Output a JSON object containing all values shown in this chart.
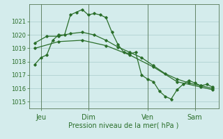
{
  "background_color": "#d4ecec",
  "grid_color": "#a8cccc",
  "line_color": "#2a6e2a",
  "marker_color": "#2a6e2a",
  "xlabel": "Pression niveau de la mer( hPa )",
  "ylim": [
    1014.5,
    1022.3
  ],
  "xlim": [
    0,
    16
  ],
  "yticks": [
    1015,
    1016,
    1017,
    1018,
    1019,
    1020,
    1021
  ],
  "day_labels": [
    "Jeu",
    "Dim",
    "Ven",
    "Sam"
  ],
  "day_positions": [
    1,
    5,
    10,
    14
  ],
  "vline_positions": [
    1,
    5,
    10,
    14
  ],
  "series1_x": [
    0.5,
    1.0,
    1.5,
    2.0,
    2.5,
    3.0,
    3.5,
    4.0,
    4.5,
    5.0,
    5.5,
    6.0,
    6.5,
    7.0,
    7.5,
    8.0,
    8.5,
    9.0,
    9.5,
    10.0,
    10.5,
    11.0,
    11.5,
    12.0,
    12.5,
    13.0,
    13.5,
    14.0,
    14.5,
    15.0,
    15.5
  ],
  "series1_y": [
    1017.8,
    1018.3,
    1018.5,
    1019.6,
    1020.0,
    1020.0,
    1021.5,
    1021.7,
    1021.9,
    1021.5,
    1021.6,
    1021.5,
    1021.3,
    1020.2,
    1019.3,
    1018.7,
    1018.6,
    1018.7,
    1017.0,
    1016.7,
    1016.5,
    1015.8,
    1015.4,
    1015.2,
    1015.9,
    1016.3,
    1016.6,
    1016.4,
    1016.2,
    1016.3,
    1016.1
  ],
  "series2_x": [
    0.5,
    1.5,
    2.5,
    3.5,
    4.5,
    5.5,
    6.5,
    7.5,
    8.5,
    9.5,
    10.5,
    11.5,
    12.5,
    13.5,
    14.5,
    15.5
  ],
  "series2_y": [
    1019.4,
    1019.9,
    1019.9,
    1020.1,
    1020.2,
    1020.0,
    1019.6,
    1019.1,
    1018.7,
    1018.3,
    1017.7,
    1017.1,
    1016.7,
    1016.4,
    1016.2,
    1016.0
  ],
  "series3_x": [
    0.5,
    2.5,
    4.5,
    6.5,
    8.5,
    10.5,
    12.5,
    14.5,
    15.5
  ],
  "series3_y": [
    1019.0,
    1019.5,
    1019.6,
    1019.2,
    1018.5,
    1017.6,
    1016.5,
    1016.1,
    1015.9
  ],
  "figsize": [
    3.2,
    2.0
  ],
  "dpi": 100
}
